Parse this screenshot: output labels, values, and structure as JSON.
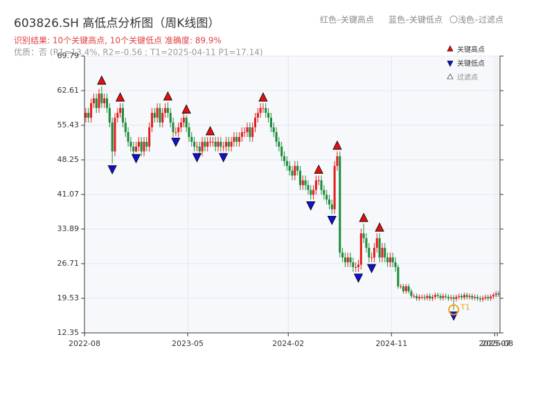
{
  "chart_data": {
    "type": "candlestick",
    "title": "603826.SH 高低点分析图（周K线图）",
    "header_legend": [
      "红色–关键高点",
      "蓝色–关键低点",
      "〇浅色–过滤点"
    ],
    "subtitle": "识别结果: 10个关键高点, 10个关键低点  准确度: 89.9%",
    "note": "优质：否  (R1=13.4%, R2=-0.56 ; T1=2025-04-11 P1=17.14)",
    "up_color": "#e02020",
    "down_color": "#1a8c3a",
    "open": [
      57,
      58,
      57,
      60,
      61,
      59,
      62,
      60,
      61,
      59,
      56,
      50,
      57,
      58,
      59,
      56,
      54,
      52,
      51,
      50,
      51,
      52,
      50,
      52,
      51,
      55,
      58,
      57,
      59,
      56,
      58,
      59,
      58,
      56,
      54,
      54,
      55,
      56,
      57,
      55,
      53,
      52,
      51,
      51,
      50,
      52,
      51,
      52,
      52,
      52,
      51,
      52,
      51,
      51,
      52,
      51,
      52,
      53,
      52,
      53,
      54,
      54,
      55,
      53,
      55,
      57,
      58,
      59,
      59,
      58,
      57,
      55,
      54,
      52,
      51,
      49,
      48,
      47,
      46,
      45,
      47,
      46,
      43,
      44,
      43,
      42,
      41,
      42,
      44,
      44,
      42,
      41,
      40,
      39,
      38,
      47,
      49,
      29,
      28,
      27,
      28,
      27,
      26,
      26,
      26.5,
      33,
      32,
      30,
      28,
      28,
      30,
      32,
      28,
      30,
      28,
      27,
      28,
      27,
      26,
      22,
      22,
      21,
      22,
      21,
      20,
      20,
      19.5,
      19.8,
      19.8,
      19.6,
      20,
      19.5,
      19.8,
      20.2,
      20,
      19.6,
      20,
      19.8,
      19.5,
      19.7,
      19.4,
      19.8,
      20,
      19.7,
      20.2,
      19.8,
      20,
      19.6,
      19.8,
      19.5,
      19.3,
      19.6,
      19.8,
      19.5,
      19.9,
      20.2,
      20.5
    ],
    "high": [
      59,
      59,
      61,
      62,
      62,
      63,
      63.5,
      62,
      62,
      60,
      57,
      58,
      59,
      60,
      60,
      57,
      55,
      53,
      52,
      52,
      53,
      53,
      53,
      53,
      56,
      59,
      59,
      60,
      60,
      59,
      60,
      60.2,
      59,
      57,
      55,
      56,
      57,
      58,
      57.5,
      56,
      54,
      53,
      52,
      52,
      53,
      53,
      53,
      53,
      53,
      53,
      53,
      53,
      52,
      53,
      53,
      53,
      54,
      54,
      54,
      55,
      55,
      56,
      56,
      56,
      58,
      59,
      60,
      60,
      60,
      59,
      58,
      56,
      55,
      53,
      52,
      50,
      49,
      48,
      47,
      48,
      48,
      47,
      45,
      45,
      44,
      43,
      43,
      45,
      45,
      45,
      43,
      42,
      41,
      40,
      48,
      50,
      50,
      30,
      29,
      29,
      29,
      28,
      27,
      27.5,
      34,
      35,
      33,
      31,
      29,
      31,
      33,
      33,
      31,
      31,
      29,
      29,
      29,
      28,
      26.5,
      22.5,
      22.5,
      22.5,
      22.5,
      21.5,
      20.5,
      20.5,
      20.3,
      20.3,
      20.3,
      20.5,
      20.5,
      20.3,
      20.7,
      20.7,
      20.5,
      20.5,
      20.5,
      20.3,
      20.2,
      20.2,
      20.3,
      20.5,
      20.5,
      20.7,
      20.7,
      20.5,
      20.5,
      20.3,
      20.3,
      20,
      20.1,
      20.3,
      20.3,
      20.4,
      20.7,
      21,
      21
    ],
    "low": [
      56,
      56,
      56,
      59,
      58,
      58,
      59,
      59,
      58,
      55,
      47.5,
      49,
      56,
      57,
      55,
      53,
      51,
      50,
      49,
      49.8,
      50,
      49,
      49,
      50,
      50,
      54,
      56,
      56,
      55,
      55,
      57,
      57,
      55,
      53,
      53.2,
      53,
      54,
      55,
      54,
      52,
      51,
      50,
      50,
      49,
      49,
      50,
      50,
      51,
      51,
      50,
      50,
      50,
      50,
      50,
      50,
      50,
      51,
      51,
      51,
      52,
      53,
      53,
      52,
      52,
      54,
      56,
      57,
      58,
      57,
      56,
      54,
      53,
      51,
      50,
      48,
      47,
      46,
      45,
      44,
      44,
      45,
      42,
      42,
      42,
      41,
      40,
      40,
      41,
      43,
      41,
      40,
      39,
      38,
      37,
      37,
      46,
      28,
      27,
      26,
      26,
      26,
      25,
      25,
      25,
      25.5,
      31,
      29,
      27,
      27,
      27,
      29,
      27,
      27,
      27,
      26,
      26,
      26,
      25,
      21.5,
      21.5,
      20.5,
      20.5,
      20.5,
      19.5,
      19.5,
      19,
      19,
      19.3,
      19.1,
      19.1,
      19,
      19,
      19.3,
      19.5,
      19.1,
      19.1,
      19.3,
      19,
      19,
      17.14,
      18.9,
      19.3,
      19.2,
      19.2,
      19.3,
      19.3,
      19.1,
      19.1,
      19,
      18.8,
      18.8,
      19.1,
      19,
      19,
      19.4,
      19.7,
      19.8
    ],
    "close": [
      58,
      57,
      60,
      61,
      59,
      62,
      60,
      61,
      59,
      56,
      50,
      57,
      58,
      59,
      56,
      54,
      52,
      51,
      50,
      51,
      52,
      50,
      52,
      51,
      55,
      58,
      57,
      59,
      56,
      58,
      59,
      58,
      56,
      54,
      54,
      55,
      56,
      57,
      55,
      53,
      52,
      51,
      51,
      50,
      52,
      51,
      52,
      52,
      52,
      51,
      52,
      51,
      51,
      52,
      51,
      52,
      53,
      52,
      53,
      54,
      54,
      55,
      53,
      55,
      57,
      58,
      59,
      59,
      58,
      57,
      55,
      54,
      52,
      51,
      49,
      48,
      47,
      46,
      45,
      47,
      46,
      43,
      44,
      43,
      42,
      41,
      42,
      44,
      44,
      42,
      41,
      40,
      39,
      38,
      47,
      49,
      29,
      28,
      27,
      28,
      27,
      26,
      26,
      26.5,
      33,
      32,
      30,
      28,
      28,
      30,
      32,
      28,
      30,
      28,
      27,
      28,
      27,
      26,
      22,
      22,
      21,
      22,
      21,
      20,
      20,
      19.5,
      19.8,
      19.8,
      19.6,
      20,
      19.5,
      19.8,
      20.2,
      20,
      19.6,
      20,
      19.8,
      19.5,
      19.7,
      19.4,
      19.8,
      20,
      19.7,
      20.2,
      19.8,
      20,
      19.6,
      19.8,
      19.5,
      19.3,
      19.6,
      19.8,
      19.5,
      19.9,
      20.2,
      20.5,
      20.3
    ],
    "key_highs": {
      "name": "关键高点",
      "color": "#e01010",
      "x": [
        6,
        13,
        31,
        38,
        47,
        67,
        88,
        95,
        105,
        111
      ],
      "values": [
        63.5,
        60,
        60.2,
        57.5,
        53,
        60,
        45,
        50,
        35,
        33
      ]
    },
    "key_lows": {
      "name": "关键低点",
      "color": "#1010d0",
      "x": [
        10,
        19,
        34,
        42,
        52,
        85,
        93,
        103,
        108,
        139
      ],
      "values": [
        47.5,
        49.8,
        53.2,
        50,
        50,
        40,
        37,
        25,
        27,
        17.14
      ]
    },
    "filtered": {
      "name": "过滤点"
    },
    "annotation": "T1",
    "xlim": [
      0,
      157
    ],
    "xticks": [
      {
        "value": 0,
        "label": "2022-08"
      },
      {
        "value": 39,
        "label": "2023-05"
      },
      {
        "value": 77,
        "label": "2024-02"
      },
      {
        "value": 116,
        "label": "2024-11"
      },
      {
        "value": 155,
        "label": "2025-07"
      },
      {
        "value": 156,
        "label": "2025-08"
      }
    ],
    "ylim": [
      12.35,
      69.79
    ],
    "yticks": [
      12.35,
      19.53,
      26.71,
      33.89,
      41.07,
      48.25,
      55.43,
      62.61,
      69.79
    ],
    "grid": true
  }
}
